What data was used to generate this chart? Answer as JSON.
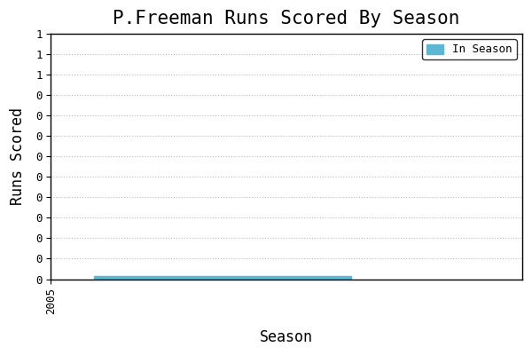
{
  "title": "P.Freeman Runs Scored By Season",
  "xlabel": "Season",
  "ylabel": "Runs Scored",
  "legend_label": "In Season",
  "bar_color": "#5bb8d4",
  "background_color": "#ffffff",
  "x_data": [
    2006,
    2007,
    2008,
    2009,
    2010,
    2011,
    2012
  ],
  "y_data": [
    0.015,
    0.015,
    0.015,
    0.015,
    0.015,
    0.015,
    0.015
  ],
  "ylim": [
    0,
    1.2
  ],
  "xlim": [
    2005.0,
    2016.0
  ],
  "x_ticks": [
    2005
  ],
  "y_tick_values": [
    0.0,
    0.1,
    0.2,
    0.3,
    0.4,
    0.5,
    0.6,
    0.7,
    0.8,
    0.9,
    1.0,
    1.1,
    1.2
  ],
  "title_fontsize": 15,
  "axis_label_fontsize": 12,
  "tick_fontsize": 9,
  "grid_linestyle": ":",
  "grid_color": "#bbbbbb",
  "legend_fontsize": 9
}
